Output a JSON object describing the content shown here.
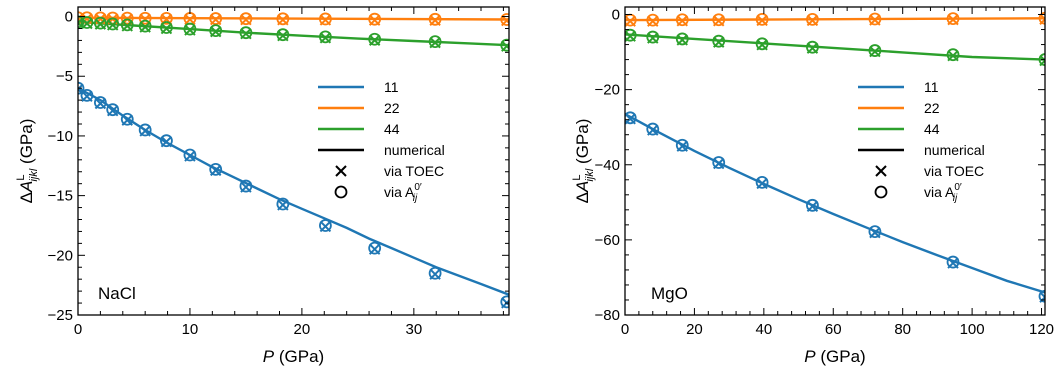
{
  "figure": {
    "colors": {
      "11": "#1f77b4",
      "22": "#ff7f0e",
      "44": "#2ca02c",
      "numerical": "#000000"
    },
    "legend": {
      "placement": "right-middle",
      "entries": [
        {
          "label": "11",
          "kind": "line",
          "color": "#1f77b4"
        },
        {
          "label": "22",
          "kind": "line",
          "color": "#ff7f0e"
        },
        {
          "label": "44",
          "kind": "line",
          "color": "#2ca02c"
        },
        {
          "label": "numerical",
          "kind": "line",
          "color": "#000000"
        },
        {
          "label": "via TOEC",
          "kind": "marker-x",
          "color": "#000000"
        },
        {
          "label": "via A",
          "sub": "ij",
          "sup": "0′",
          "kind": "marker-o",
          "color": "#000000"
        }
      ]
    }
  },
  "chart_data": [
    {
      "type": "line",
      "panel_label": "NaCl",
      "xlabel": {
        "italic": "P",
        "rest": " (GPa)"
      },
      "ylabel": {
        "prefix": "Δ",
        "var": "A",
        "sup": "L",
        "sub": "ijkl",
        "rest": " (GPa)"
      },
      "xlim": [
        0,
        38.5
      ],
      "ylim": [
        -25,
        0.8
      ],
      "xticks": [
        0,
        10,
        20,
        30
      ],
      "yticks": [
        0,
        -5,
        -10,
        -15,
        -20,
        -25
      ],
      "ytick_labels": [
        "0",
        "−5",
        "−10",
        "−15",
        "−20",
        "−25"
      ],
      "grid": false,
      "series": [
        {
          "name": "11",
          "color": "#1f77b4",
          "curve_x": [
            0,
            2,
            4,
            6,
            8,
            10,
            12,
            14,
            16,
            18,
            20,
            22,
            24,
            26,
            28,
            30,
            32,
            34,
            36,
            38.5
          ],
          "curve_y": [
            -6.0,
            -7.0,
            -8.3,
            -9.5,
            -10.6,
            -11.6,
            -12.6,
            -13.5,
            -14.4,
            -15.3,
            -16.1,
            -16.9,
            -17.7,
            -18.6,
            -19.4,
            -20.2,
            -21.0,
            -21.7,
            -22.4,
            -23.3
          ],
          "points_x": [
            0,
            0.8,
            2.0,
            3.1,
            4.4,
            6.0,
            7.9,
            10.0,
            12.3,
            15.0,
            18.3,
            22.1,
            26.5,
            31.9,
            38.3
          ],
          "points_y": [
            -6.0,
            -6.6,
            -7.2,
            -7.8,
            -8.6,
            -9.5,
            -10.4,
            -11.6,
            -12.8,
            -14.2,
            -15.7,
            -17.5,
            -19.4,
            -21.5,
            -23.9
          ]
        },
        {
          "name": "22",
          "color": "#ff7f0e",
          "curve_x": [
            0,
            38.5
          ],
          "curve_y": [
            -0.1,
            -0.25
          ],
          "points_x": [
            0,
            0.8,
            2.0,
            3.1,
            4.4,
            6.0,
            7.9,
            10.0,
            12.3,
            15.0,
            18.3,
            22.1,
            26.5,
            31.9,
            38.3
          ],
          "points_y": [
            -0.1,
            -0.1,
            -0.11,
            -0.12,
            -0.13,
            -0.14,
            -0.15,
            -0.16,
            -0.17,
            -0.18,
            -0.19,
            -0.2,
            -0.22,
            -0.23,
            -0.25
          ]
        },
        {
          "name": "44",
          "color": "#2ca02c",
          "curve_x": [
            0,
            5,
            10,
            15,
            20,
            25,
            30,
            35,
            38.5
          ],
          "curve_y": [
            -0.45,
            -0.75,
            -1.05,
            -1.35,
            -1.6,
            -1.85,
            -2.05,
            -2.25,
            -2.4
          ],
          "points_x": [
            0,
            0.8,
            2.0,
            3.1,
            4.4,
            6.0,
            7.9,
            10.0,
            12.3,
            15.0,
            18.3,
            22.1,
            26.5,
            31.9,
            38.3
          ],
          "points_y": [
            -0.45,
            -0.5,
            -0.55,
            -0.62,
            -0.7,
            -0.8,
            -0.92,
            -1.05,
            -1.18,
            -1.35,
            -1.52,
            -1.7,
            -1.9,
            -2.1,
            -2.4
          ]
        }
      ]
    },
    {
      "type": "line",
      "panel_label": "MgO",
      "xlabel": {
        "italic": "P",
        "rest": " (GPa)"
      },
      "ylabel": {
        "prefix": "Δ",
        "var": "A",
        "sup": "L",
        "sub": "ijkl",
        "rest": " (GPa)"
      },
      "xlim": [
        0,
        121
      ],
      "ylim": [
        -80,
        2
      ],
      "xticks": [
        0,
        20,
        40,
        60,
        80,
        100,
        120
      ],
      "yticks": [
        0,
        -20,
        -40,
        -60,
        -80
      ],
      "ytick_labels": [
        "0",
        "−20",
        "−40",
        "−60",
        "−80"
      ],
      "grid": false,
      "series": [
        {
          "name": "11",
          "color": "#1f77b4",
          "curve_x": [
            0,
            10,
            20,
            30,
            40,
            50,
            60,
            70,
            80,
            90,
            100,
            110,
            121
          ],
          "curve_y": [
            -26.5,
            -31.5,
            -36.3,
            -40.8,
            -45.1,
            -49.2,
            -53.1,
            -56.9,
            -60.6,
            -64.1,
            -67.5,
            -70.9,
            -74.0
          ],
          "points_x": [
            1.5,
            8.0,
            16.5,
            27.0,
            39.5,
            54.0,
            72.0,
            94.5,
            121
          ],
          "points_y": [
            -27.5,
            -30.5,
            -34.8,
            -39.4,
            -44.7,
            -50.8,
            -57.8,
            -65.9,
            -75.0
          ]
        },
        {
          "name": "22",
          "color": "#ff7f0e",
          "curve_x": [
            0,
            121
          ],
          "curve_y": [
            -1.5,
            -1.0
          ],
          "points_x": [
            1.5,
            8.0,
            16.5,
            27.0,
            39.5,
            54.0,
            72.0,
            94.5,
            121
          ],
          "points_y": [
            -1.5,
            -1.5,
            -1.4,
            -1.4,
            -1.3,
            -1.3,
            -1.2,
            -1.1,
            -1.0
          ]
        },
        {
          "name": "44",
          "color": "#2ca02c",
          "curve_x": [
            0,
            20,
            40,
            60,
            80,
            100,
            121
          ],
          "curve_y": [
            -5.3,
            -6.5,
            -7.7,
            -8.9,
            -10.1,
            -11.3,
            -12.0
          ],
          "points_x": [
            1.5,
            8.0,
            16.5,
            27.0,
            39.5,
            54.0,
            72.0,
            94.5,
            121
          ],
          "points_y": [
            -5.5,
            -6.0,
            -6.5,
            -7.1,
            -7.8,
            -8.7,
            -9.6,
            -10.7,
            -12.0
          ]
        }
      ]
    }
  ]
}
